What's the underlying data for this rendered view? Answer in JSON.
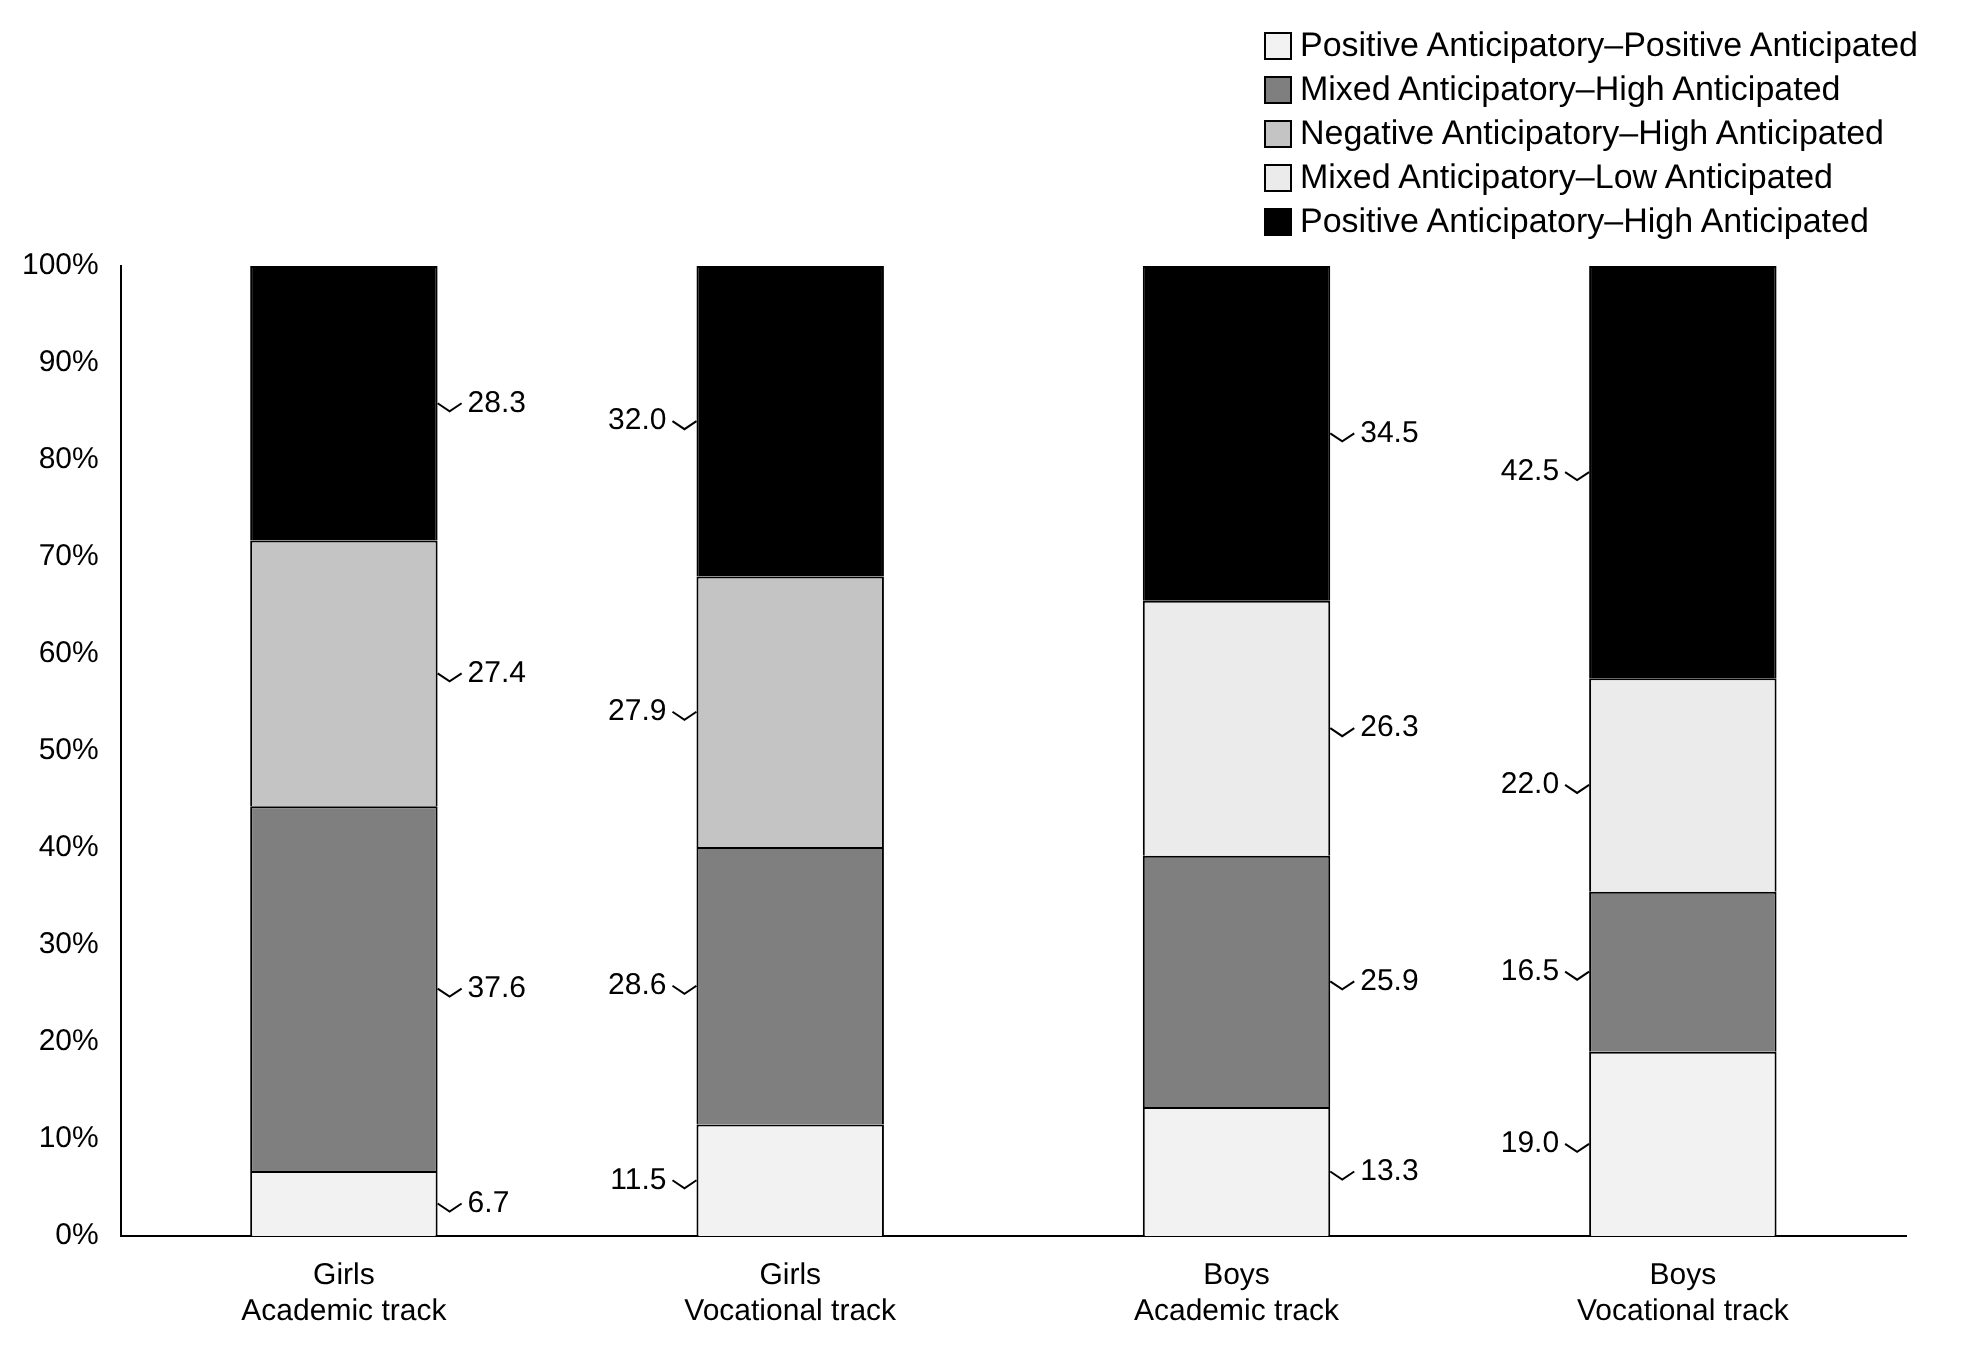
{
  "chart_data": {
    "type": "bar",
    "stacked": true,
    "categories": [
      "Girls\nAcademic track",
      "Girls\nVocational track",
      "Boys\nAcademic track",
      "Boys\nVocational track"
    ],
    "series": [
      {
        "name": "Positive Anticipatory–Positive Anticipated",
        "color": "#f2f2f2",
        "values": [
          6.7,
          11.5,
          13.3,
          19.0
        ],
        "value_labels": [
          "6.7",
          "11.5",
          "13.3",
          "19.0"
        ]
      },
      {
        "name": "Mixed Anticipatory–High Anticipated",
        "color": "#7f7f7f",
        "values": [
          37.6,
          28.6,
          25.9,
          16.5
        ],
        "value_labels": [
          "37.6",
          "28.6",
          "25.9",
          "16.5"
        ]
      },
      {
        "name": "Negative Anticipatory–High Anticipated",
        "color": "#c4c4c4",
        "values": [
          27.4,
          27.9,
          null,
          null
        ],
        "value_labels": [
          "27.4",
          "27.9",
          null,
          null
        ]
      },
      {
        "name": "Mixed Anticipatory–Low Anticipated",
        "color": "#ebebeb",
        "values": [
          null,
          null,
          26.3,
          22.0
        ],
        "value_labels": [
          null,
          null,
          "26.3",
          "22.0"
        ]
      },
      {
        "name": "Positive Anticipatory–High Anticipated",
        "color": "#000000",
        "values": [
          28.3,
          32.0,
          34.5,
          42.5
        ],
        "value_labels": [
          "28.3",
          "32.0",
          "34.5",
          "42.5"
        ]
      }
    ],
    "ylim": [
      0,
      100
    ],
    "yticks": [
      {
        "value": 0,
        "label": "0%"
      },
      {
        "value": 10,
        "label": "10%"
      },
      {
        "value": 20,
        "label": "20%"
      },
      {
        "value": 30,
        "label": "30%"
      },
      {
        "value": 40,
        "label": "40%"
      },
      {
        "value": 50,
        "label": "50%"
      },
      {
        "value": 60,
        "label": "60%"
      },
      {
        "value": 70,
        "label": "70%"
      },
      {
        "value": 80,
        "label": "80%"
      },
      {
        "value": 90,
        "label": "90%"
      },
      {
        "value": 100,
        "label": "100%"
      }
    ],
    "grid": false,
    "legend": "top right"
  }
}
